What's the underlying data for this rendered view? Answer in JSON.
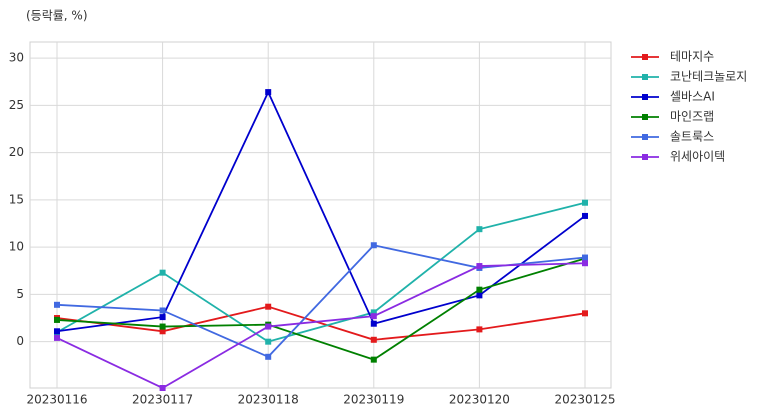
{
  "chart_data": {
    "type": "line",
    "y_label": "(등락률, %)",
    "categories": [
      "20230116",
      "20230117",
      "20230118",
      "20230119",
      "20230120",
      "20230125"
    ],
    "ylim": [
      -4.9,
      31.7
    ],
    "yticks": [
      0,
      5,
      10,
      15,
      20,
      25,
      30
    ],
    "grid": true,
    "legend": "outside-right",
    "series": [
      {
        "name": "테마지수",
        "color": "#e31a1c",
        "values": [
          2.5,
          1.1,
          3.7,
          0.2,
          1.3,
          3.0
        ]
      },
      {
        "name": "코난테크놀로지",
        "color": "#20b2aa",
        "values": [
          1.0,
          7.3,
          0.0,
          3.1,
          11.9,
          14.7
        ]
      },
      {
        "name": "셀바스AI",
        "color": "#0000cd",
        "values": [
          1.1,
          2.6,
          26.4,
          1.9,
          4.9,
          13.3
        ]
      },
      {
        "name": "마인즈랩",
        "color": "#008000",
        "values": [
          2.3,
          1.6,
          1.8,
          -1.9,
          5.5,
          8.8
        ]
      },
      {
        "name": "솔트룩스",
        "color": "#4169e1",
        "values": [
          3.9,
          3.3,
          -1.6,
          10.2,
          7.8,
          8.9
        ]
      },
      {
        "name": "위세아이텍",
        "color": "#8a2be2",
        "values": [
          0.4,
          -4.9,
          1.6,
          2.7,
          8.0,
          8.3
        ]
      }
    ]
  }
}
